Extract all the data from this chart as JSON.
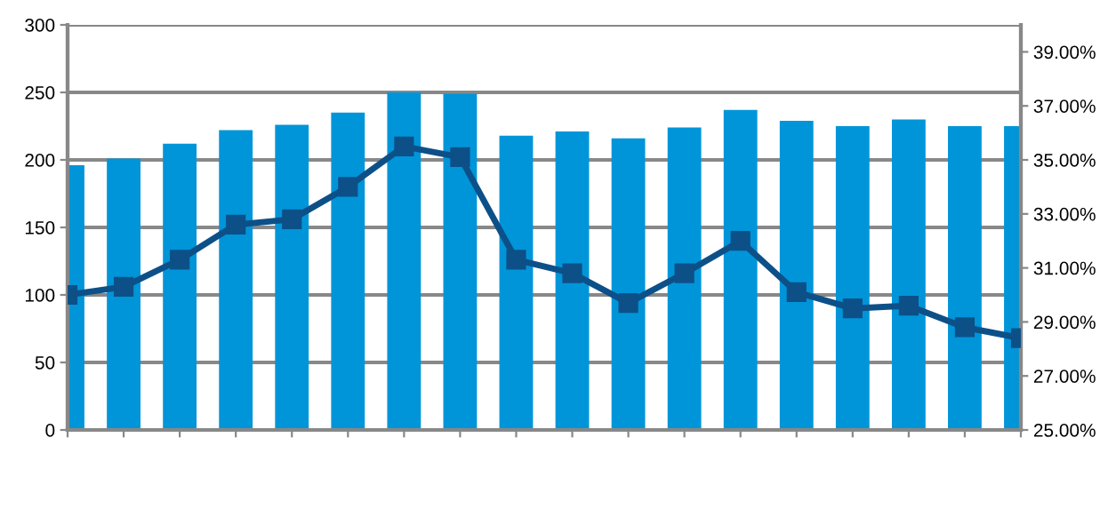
{
  "chart_data": {
    "type": "bar",
    "categories": [
      null,
      null,
      null,
      null,
      null,
      null,
      null,
      null,
      null,
      null,
      null,
      null,
      null,
      null,
      null,
      null,
      null,
      null
    ],
    "series": [
      {
        "color": "#0095d9",
        "values": [
          196,
          201,
          212,
          222,
          226,
          235,
          250,
          249,
          218,
          221,
          216,
          224,
          237,
          229,
          225,
          230,
          225,
          225
        ]
      },
      {
        "type": "line",
        "axis": "y2",
        "color": "#0d5088",
        "marker": "square",
        "values": [
          30.0,
          30.3,
          31.3,
          32.6,
          32.8,
          34.0,
          35.5,
          35.1,
          31.3,
          30.8,
          29.7,
          30.8,
          32.0,
          30.1,
          29.5,
          29.6,
          28.8,
          28.4
        ]
      }
    ],
    "ylim": [
      0,
      300
    ],
    "yticks": [
      0,
      50,
      100,
      150,
      200,
      250,
      300
    ],
    "y2lim": [
      25,
      40
    ],
    "y2ticks": [
      {
        "value": 25,
        "label": "25.00%"
      },
      {
        "value": 27,
        "label": "27.00%"
      },
      {
        "value": 29,
        "label": "29.00%"
      },
      {
        "value": 31,
        "label": "31.00%"
      },
      {
        "value": 33,
        "label": "33.00%"
      },
      {
        "value": 35,
        "label": "35.00%"
      },
      {
        "value": 37,
        "label": "37.00%"
      },
      {
        "value": 39,
        "label": "39.00%"
      }
    ],
    "grid": "y",
    "legend": false
  }
}
